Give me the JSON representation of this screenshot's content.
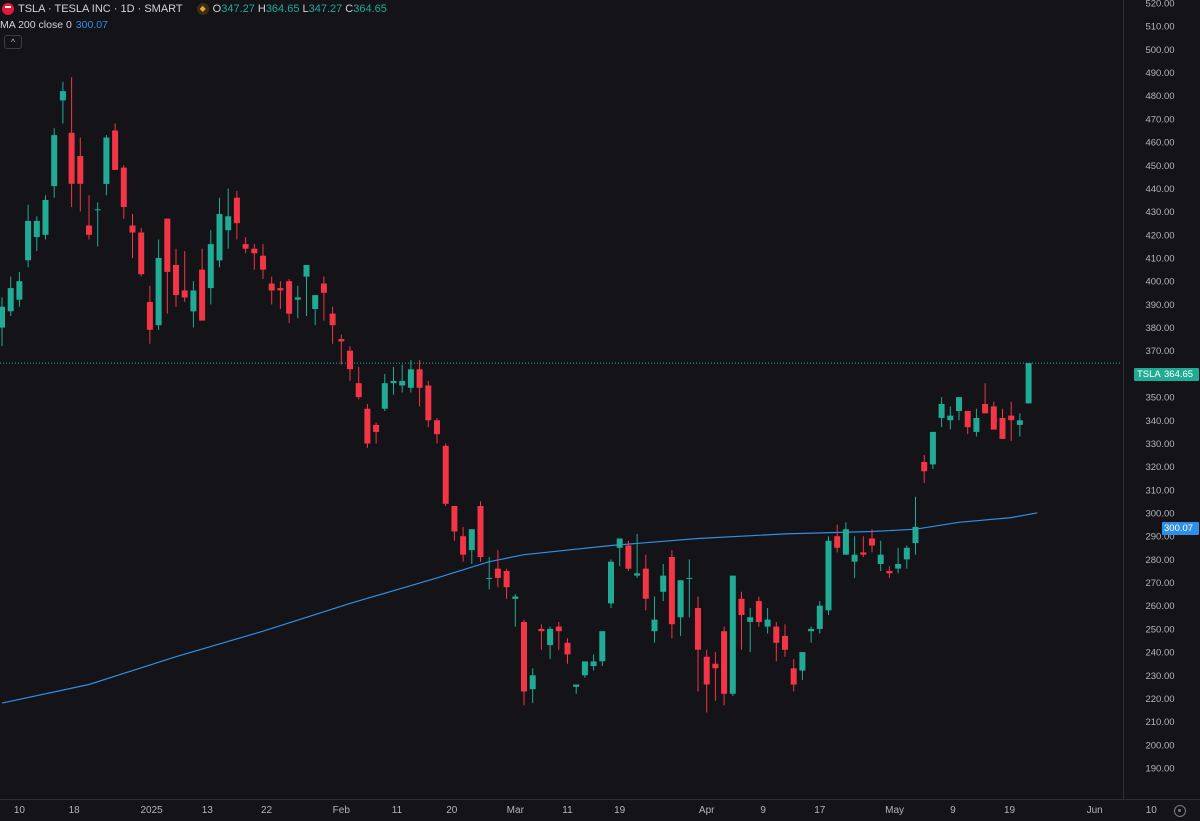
{
  "header": {
    "title": "TSLA · TESLA INC · 1D · SMART",
    "open_label": "O",
    "open": "347.27",
    "high_label": "H",
    "high": "364.65",
    "low_label": "L",
    "low": "347.27",
    "close_label": "C",
    "close": "364.65"
  },
  "indicator": {
    "label": "MA 200 close 0",
    "value": "300.07"
  },
  "price_tags": {
    "symbol": "TSLA",
    "last": "364.65",
    "ma": "300.07"
  },
  "colors": {
    "background": "#131318",
    "up": "#22ab94",
    "down": "#f23645",
    "ma": "#2f8fe6",
    "axis_text": "#b2b5be"
  },
  "icons": {
    "logo": "tesla-logo-icon",
    "flag": "exchange-flag-icon",
    "collapse": "chevron-up-icon",
    "settings": "gear-icon"
  },
  "chart_data": {
    "type": "candlestick",
    "symbol": "TSLA",
    "interval": "1D",
    "y_range": [
      185,
      520
    ],
    "y_ticks": [
      190,
      200,
      210,
      220,
      230,
      240,
      250,
      260,
      270,
      280,
      290,
      300,
      310,
      320,
      330,
      340,
      350,
      360,
      370,
      380,
      390,
      400,
      410,
      420,
      430,
      440,
      450,
      460,
      470,
      480,
      490,
      500,
      510,
      520
    ],
    "x_ticks": [
      "10",
      "18",
      "2025",
      "13",
      "22",
      "Feb",
      "11",
      "20",
      "Mar",
      "11",
      "19",
      "Apr",
      "9",
      "17",
      "May",
      "9",
      "19",
      "Jun",
      "10"
    ],
    "candles": [
      {
        "o": 380,
        "h": 393,
        "l": 372,
        "c": 389
      },
      {
        "o": 387,
        "h": 402,
        "l": 385,
        "c": 397
      },
      {
        "o": 392,
        "h": 404,
        "l": 389,
        "c": 400
      },
      {
        "o": 409,
        "h": 433,
        "l": 406,
        "c": 426
      },
      {
        "o": 419,
        "h": 428,
        "l": 413,
        "c": 426
      },
      {
        "o": 420,
        "h": 437,
        "l": 418,
        "c": 435
      },
      {
        "o": 441,
        "h": 466,
        "l": 436,
        "c": 463
      },
      {
        "o": 478,
        "h": 486,
        "l": 468,
        "c": 482
      },
      {
        "o": 464,
        "h": 488,
        "l": 432,
        "c": 442
      },
      {
        "o": 454,
        "h": 462,
        "l": 430,
        "c": 442
      },
      {
        "o": 424,
        "h": 437,
        "l": 418,
        "c": 420
      },
      {
        "o": 431,
        "h": 434,
        "l": 415,
        "c": 431
      },
      {
        "o": 442,
        "h": 463,
        "l": 437,
        "c": 462
      },
      {
        "o": 465,
        "h": 468,
        "l": 448,
        "c": 448
      },
      {
        "o": 449,
        "h": 450,
        "l": 427,
        "c": 432
      },
      {
        "o": 424,
        "h": 429,
        "l": 410,
        "c": 421
      },
      {
        "o": 421,
        "h": 423,
        "l": 402,
        "c": 403
      },
      {
        "o": 391,
        "h": 398,
        "l": 373,
        "c": 379
      },
      {
        "o": 381,
        "h": 418,
        "l": 379,
        "c": 410
      },
      {
        "o": 427,
        "h": 427,
        "l": 386,
        "c": 404
      },
      {
        "o": 407,
        "h": 414,
        "l": 389,
        "c": 394
      },
      {
        "o": 396,
        "h": 413,
        "l": 391,
        "c": 393
      },
      {
        "o": 387,
        "h": 400,
        "l": 380,
        "c": 396
      },
      {
        "o": 405,
        "h": 414,
        "l": 386,
        "c": 383
      },
      {
        "o": 397,
        "h": 422,
        "l": 390,
        "c": 416
      },
      {
        "o": 409,
        "h": 436,
        "l": 406,
        "c": 429
      },
      {
        "o": 422,
        "h": 440,
        "l": 414,
        "c": 428
      },
      {
        "o": 436,
        "h": 439,
        "l": 418,
        "c": 425
      },
      {
        "o": 416,
        "h": 419,
        "l": 412,
        "c": 414
      },
      {
        "o": 414,
        "h": 416,
        "l": 405,
        "c": 412
      },
      {
        "o": 411,
        "h": 416,
        "l": 401,
        "c": 405
      },
      {
        "o": 399,
        "h": 402,
        "l": 390,
        "c": 396
      },
      {
        "o": 397,
        "h": 400,
        "l": 388,
        "c": 396
      },
      {
        "o": 400,
        "h": 401,
        "l": 382,
        "c": 386
      },
      {
        "o": 392,
        "h": 398,
        "l": 384,
        "c": 393
      },
      {
        "o": 402,
        "h": 406,
        "l": 385,
        "c": 407
      },
      {
        "o": 388,
        "h": 394,
        "l": 381,
        "c": 394
      },
      {
        "o": 399,
        "h": 402,
        "l": 383,
        "c": 395
      },
      {
        "o": 386,
        "h": 389,
        "l": 373,
        "c": 381
      },
      {
        "o": 375,
        "h": 377,
        "l": 364,
        "c": 374
      },
      {
        "o": 370,
        "h": 372,
        "l": 357,
        "c": 362
      },
      {
        "o": 356,
        "h": 363,
        "l": 349,
        "c": 350
      },
      {
        "o": 345,
        "h": 347,
        "l": 328,
        "c": 330
      },
      {
        "o": 338,
        "h": 339,
        "l": 330,
        "c": 335
      },
      {
        "o": 345,
        "h": 360,
        "l": 344,
        "c": 356
      },
      {
        "o": 356,
        "h": 363,
        "l": 351,
        "c": 357
      },
      {
        "o": 355,
        "h": 364,
        "l": 352,
        "c": 357
      },
      {
        "o": 354,
        "h": 366,
        "l": 352,
        "c": 362
      },
      {
        "o": 362,
        "h": 366,
        "l": 346,
        "c": 354
      },
      {
        "o": 355,
        "h": 357,
        "l": 337,
        "c": 340
      },
      {
        "o": 340,
        "h": 341,
        "l": 330,
        "c": 334
      },
      {
        "o": 329,
        "h": 330,
        "l": 303,
        "c": 304
      },
      {
        "o": 303,
        "h": 303,
        "l": 288,
        "c": 292
      },
      {
        "o": 290,
        "h": 294,
        "l": 279,
        "c": 282
      },
      {
        "o": 284,
        "h": 293,
        "l": 278,
        "c": 293
      },
      {
        "o": 303,
        "h": 305,
        "l": 279,
        "c": 281
      },
      {
        "o": 272,
        "h": 281,
        "l": 267,
        "c": 272
      },
      {
        "o": 276,
        "h": 284,
        "l": 268,
        "c": 272
      },
      {
        "o": 275,
        "h": 276,
        "l": 263,
        "c": 268
      },
      {
        "o": 263,
        "h": 265,
        "l": 251,
        "c": 264
      },
      {
        "o": 253,
        "h": 254,
        "l": 217,
        "c": 223
      },
      {
        "o": 224,
        "h": 233,
        "l": 218,
        "c": 230
      },
      {
        "o": 250,
        "h": 252,
        "l": 241,
        "c": 249
      },
      {
        "o": 243,
        "h": 251,
        "l": 237,
        "c": 250
      },
      {
        "o": 251,
        "h": 253,
        "l": 241,
        "c": 249
      },
      {
        "o": 244,
        "h": 246,
        "l": 235,
        "c": 239
      },
      {
        "o": 225,
        "h": 226,
        "l": 222,
        "c": 226
      },
      {
        "o": 230,
        "h": 233,
        "l": 229,
        "c": 236
      },
      {
        "o": 234,
        "h": 239,
        "l": 232,
        "c": 236
      },
      {
        "o": 236,
        "h": 249,
        "l": 234,
        "c": 249
      },
      {
        "o": 261,
        "h": 280,
        "l": 259,
        "c": 279
      },
      {
        "o": 285,
        "h": 289,
        "l": 277,
        "c": 289
      },
      {
        "o": 286,
        "h": 288,
        "l": 275,
        "c": 276
      },
      {
        "o": 273,
        "h": 291,
        "l": 272,
        "c": 274
      },
      {
        "o": 276,
        "h": 282,
        "l": 258,
        "c": 263
      },
      {
        "o": 249,
        "h": 264,
        "l": 244,
        "c": 254
      },
      {
        "o": 266,
        "h": 278,
        "l": 262,
        "c": 273
      },
      {
        "o": 281,
        "h": 284,
        "l": 246,
        "c": 252
      },
      {
        "o": 255,
        "h": 270,
        "l": 247,
        "c": 271
      },
      {
        "o": 272,
        "h": 280,
        "l": 255,
        "c": 272
      },
      {
        "o": 259,
        "h": 264,
        "l": 223,
        "c": 241
      },
      {
        "o": 238,
        "h": 241,
        "l": 214,
        "c": 226
      },
      {
        "o": 235,
        "h": 240,
        "l": 219,
        "c": 233
      },
      {
        "o": 249,
        "h": 251,
        "l": 217,
        "c": 222
      },
      {
        "o": 222,
        "h": 273,
        "l": 221,
        "c": 273
      },
      {
        "o": 263,
        "h": 266,
        "l": 241,
        "c": 256
      },
      {
        "o": 253,
        "h": 259,
        "l": 240,
        "c": 255
      },
      {
        "o": 262,
        "h": 264,
        "l": 251,
        "c": 253
      },
      {
        "o": 251,
        "h": 259,
        "l": 248,
        "c": 254
      },
      {
        "o": 251,
        "h": 253,
        "l": 236,
        "c": 244
      },
      {
        "o": 247,
        "h": 252,
        "l": 238,
        "c": 241
      },
      {
        "o": 233,
        "h": 237,
        "l": 223,
        "c": 226
      },
      {
        "o": 232,
        "h": 238,
        "l": 228,
        "c": 240
      },
      {
        "o": 249,
        "h": 251,
        "l": 244,
        "c": 250
      },
      {
        "o": 250,
        "h": 262,
        "l": 248,
        "c": 260
      },
      {
        "o": 258,
        "h": 290,
        "l": 256,
        "c": 288
      },
      {
        "o": 290,
        "h": 295,
        "l": 283,
        "c": 285
      },
      {
        "o": 282,
        "h": 296,
        "l": 282,
        "c": 293
      },
      {
        "o": 279,
        "h": 290,
        "l": 272,
        "c": 282
      },
      {
        "o": 283,
        "h": 290,
        "l": 281,
        "c": 282
      },
      {
        "o": 289,
        "h": 293,
        "l": 283,
        "c": 286
      },
      {
        "o": 278,
        "h": 288,
        "l": 275,
        "c": 282
      },
      {
        "o": 275,
        "h": 277,
        "l": 272,
        "c": 274
      },
      {
        "o": 276,
        "h": 285,
        "l": 274,
        "c": 278
      },
      {
        "o": 280,
        "h": 286,
        "l": 276,
        "c": 285
      },
      {
        "o": 287,
        "h": 307,
        "l": 282,
        "c": 294
      },
      {
        "o": 322,
        "h": 325,
        "l": 313,
        "c": 318
      },
      {
        "o": 321,
        "h": 333,
        "l": 319,
        "c": 335
      },
      {
        "o": 341,
        "h": 350,
        "l": 337,
        "c": 347
      },
      {
        "o": 340,
        "h": 346,
        "l": 336,
        "c": 342
      },
      {
        "o": 344,
        "h": 350,
        "l": 340,
        "c": 350
      },
      {
        "o": 344,
        "h": 343,
        "l": 334,
        "c": 337
      },
      {
        "o": 335,
        "h": 345,
        "l": 333,
        "c": 341
      },
      {
        "o": 347,
        "h": 356,
        "l": 343,
        "c": 343
      },
      {
        "o": 346,
        "h": 348,
        "l": 338,
        "c": 336
      },
      {
        "o": 341,
        "h": 345,
        "l": 332,
        "c": 332
      },
      {
        "o": 342,
        "h": 348,
        "l": 331,
        "c": 340
      },
      {
        "o": 338,
        "h": 343,
        "l": 333,
        "c": 340
      },
      {
        "o": 347.27,
        "h": 364.65,
        "l": 347.27,
        "c": 364.65
      }
    ],
    "ma200": [
      {
        "i": 0,
        "v": 218
      },
      {
        "i": 10,
        "v": 226
      },
      {
        "i": 20,
        "v": 238
      },
      {
        "i": 30,
        "v": 249
      },
      {
        "i": 40,
        "v": 261
      },
      {
        "i": 50,
        "v": 272
      },
      {
        "i": 56,
        "v": 279
      },
      {
        "i": 60,
        "v": 282
      },
      {
        "i": 70,
        "v": 286
      },
      {
        "i": 80,
        "v": 289
      },
      {
        "i": 90,
        "v": 291
      },
      {
        "i": 100,
        "v": 292
      },
      {
        "i": 105,
        "v": 293
      },
      {
        "i": 110,
        "v": 296
      },
      {
        "i": 116,
        "v": 298
      },
      {
        "i": 119,
        "v": 300.07
      }
    ]
  }
}
